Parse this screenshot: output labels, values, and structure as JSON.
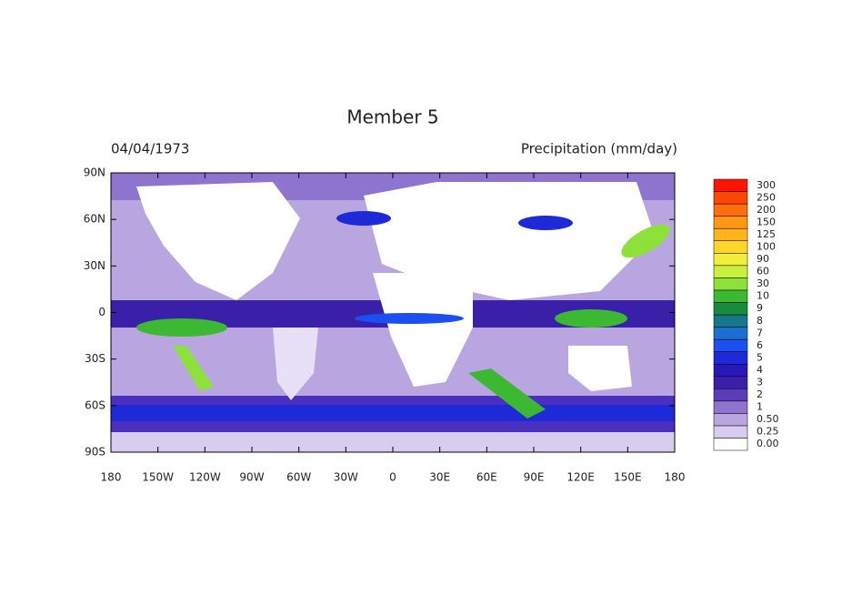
{
  "map": {
    "title": "Member 5",
    "date": "04/04/1973",
    "variable": "Precipitation (mm/day)",
    "xlim": [
      -180,
      180
    ],
    "ylim": [
      -90,
      90
    ],
    "xticks": [
      {
        "value": -180,
        "label": "180"
      },
      {
        "value": -150,
        "label": "150W"
      },
      {
        "value": -120,
        "label": "120W"
      },
      {
        "value": -90,
        "label": "90W"
      },
      {
        "value": -60,
        "label": "60W"
      },
      {
        "value": -30,
        "label": "30W"
      },
      {
        "value": 0,
        "label": "0"
      },
      {
        "value": 30,
        "label": "30E"
      },
      {
        "value": 60,
        "label": "60E"
      },
      {
        "value": 90,
        "label": "90E"
      },
      {
        "value": 120,
        "label": "120E"
      },
      {
        "value": 150,
        "label": "150E"
      },
      {
        "value": 180,
        "label": "180"
      }
    ],
    "yticks": [
      {
        "value": 90,
        "label": "90N"
      },
      {
        "value": 60,
        "label": "60N"
      },
      {
        "value": 30,
        "label": "30N"
      },
      {
        "value": 0,
        "label": "0"
      },
      {
        "value": -30,
        "label": "30S"
      },
      {
        "value": -60,
        "label": "60S"
      },
      {
        "value": -90,
        "label": "90S"
      }
    ],
    "colorbar": [
      {
        "value": 0,
        "label": "0.00",
        "color": "#ffffff"
      },
      {
        "value": 0.25,
        "label": "0.25",
        "color": "#d8cdef"
      },
      {
        "value": 0.5,
        "label": "0.50",
        "color": "#b9a6e0"
      },
      {
        "value": 1,
        "label": "1",
        "color": "#8f74cf"
      },
      {
        "value": 2,
        "label": "2",
        "color": "#5d3cb8"
      },
      {
        "value": 3,
        "label": "3",
        "color": "#3a1fa8"
      },
      {
        "value": 4,
        "label": "4",
        "color": "#2a17b8"
      },
      {
        "value": 5,
        "label": "5",
        "color": "#1e2ad8"
      },
      {
        "value": 6,
        "label": "6",
        "color": "#1c4ff0"
      },
      {
        "value": 7,
        "label": "7",
        "color": "#1a6fd0"
      },
      {
        "value": 8,
        "label": "8",
        "color": "#14788a"
      },
      {
        "value": 9,
        "label": "9",
        "color": "#168c3c"
      },
      {
        "value": 10,
        "label": "10",
        "color": "#3cb832"
      },
      {
        "value": 30,
        "label": "30",
        "color": "#8ee03a"
      },
      {
        "value": 60,
        "label": "60",
        "color": "#c8f03c"
      },
      {
        "value": 90,
        "label": "90",
        "color": "#f0f03c"
      },
      {
        "value": 100,
        "label": "100",
        "color": "#ffd72a"
      },
      {
        "value": 125,
        "label": "125",
        "color": "#ffb41e"
      },
      {
        "value": 150,
        "label": "150",
        "color": "#ff9614"
      },
      {
        "value": 200,
        "label": "200",
        "color": "#ff6e0a"
      },
      {
        "value": 250,
        "label": "250",
        "color": "#ff4605"
      },
      {
        "value": 300,
        "label": "300",
        "color": "#ff1400"
      }
    ]
  }
}
